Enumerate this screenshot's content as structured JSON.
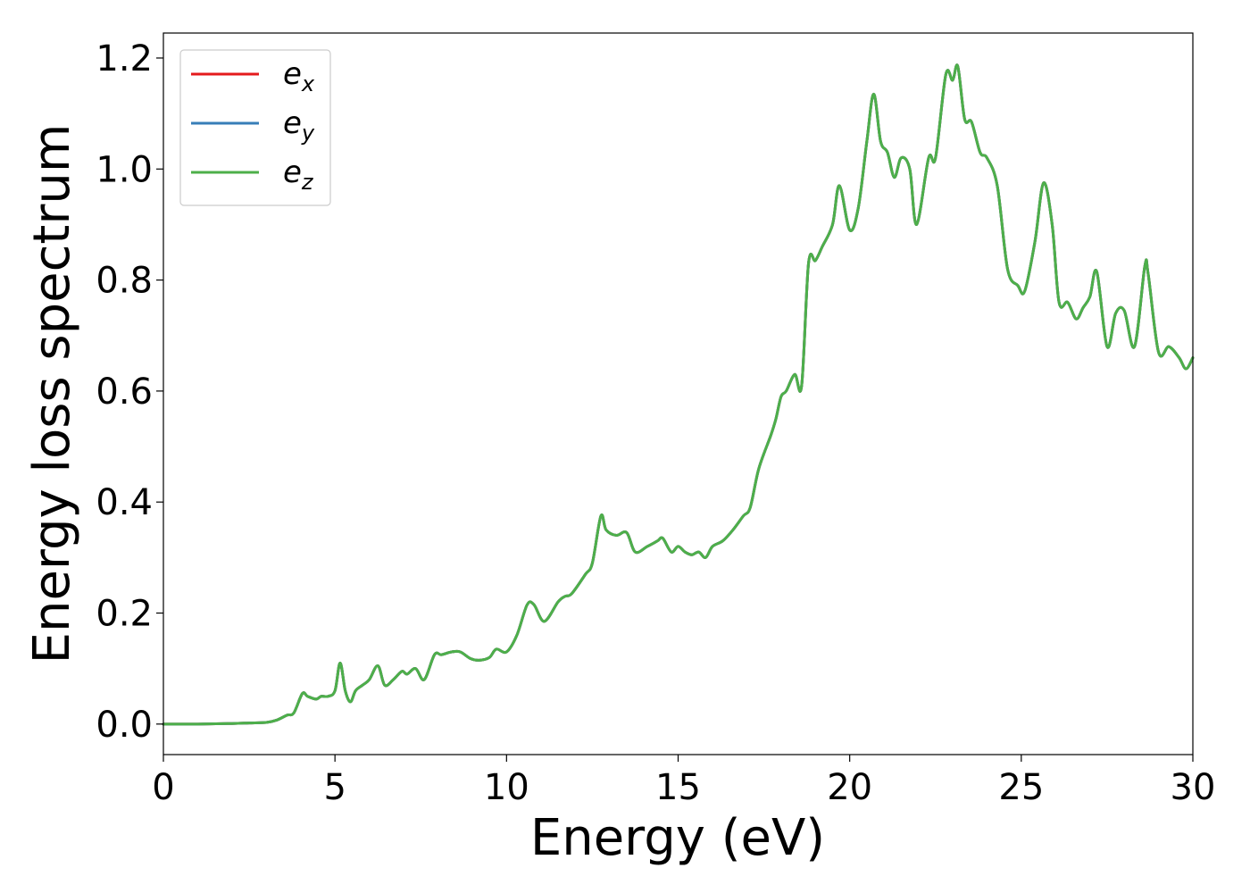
{
  "chart_data": {
    "type": "line",
    "xlabel": "Energy (eV)",
    "ylabel": "Energy loss spectrum",
    "xlim": [
      0,
      30
    ],
    "ylim": [
      -0.055,
      1.245
    ],
    "xticks": [
      "0",
      "5",
      "10",
      "15",
      "20",
      "25",
      "30"
    ],
    "yticks": [
      "0.0",
      "0.2",
      "0.4",
      "0.6",
      "0.8",
      "1.0",
      "1.2"
    ],
    "grid": false,
    "legend_placement": "top-left",
    "legend_entries": [
      {
        "base": "e",
        "sub": "x",
        "color": "#e41a1c"
      },
      {
        "base": "e",
        "sub": "y",
        "color": "#377eb8"
      },
      {
        "base": "e",
        "sub": "z",
        "color": "#4daf4a"
      }
    ],
    "series": [
      {
        "name": "e_x",
        "color": "#e41a1c",
        "x": [
          0,
          1,
          2,
          2.5,
          3,
          3.3,
          3.6,
          3.8,
          4.05,
          4.2,
          4.45,
          4.6,
          4.8,
          5.0,
          5.15,
          5.3,
          5.45,
          5.6,
          5.8,
          6.0,
          6.25,
          6.45,
          6.7,
          6.95,
          7.1,
          7.35,
          7.6,
          7.9,
          8.1,
          8.4,
          8.65,
          8.95,
          9.2,
          9.5,
          9.7,
          10.0,
          10.3,
          10.6,
          10.8,
          11.1,
          11.5,
          11.7,
          11.9,
          12.3,
          12.5,
          12.75,
          12.9,
          13.2,
          13.5,
          13.75,
          14.1,
          14.4,
          14.55,
          14.8,
          15.0,
          15.2,
          15.4,
          15.6,
          15.8,
          16.0,
          16.3,
          16.6,
          16.9,
          17.1,
          17.35,
          17.7,
          17.85,
          18.0,
          18.15,
          18.4,
          18.6,
          18.8,
          19.0,
          19.2,
          19.5,
          19.7,
          20.0,
          20.25,
          20.5,
          20.7,
          20.9,
          21.1,
          21.3,
          21.5,
          21.75,
          21.95,
          22.3,
          22.5,
          22.8,
          23.0,
          23.15,
          23.35,
          23.55,
          23.8,
          24.0,
          24.3,
          24.6,
          24.9,
          25.1,
          25.4,
          25.65,
          25.9,
          26.1,
          26.35,
          26.6,
          26.8,
          27.0,
          27.2,
          27.5,
          27.75,
          28.0,
          28.3,
          28.6,
          28.7,
          29.0,
          29.3,
          29.6,
          29.8,
          30.0
        ],
        "y": [
          0.0,
          0.0,
          0.001,
          0.002,
          0.003,
          0.007,
          0.016,
          0.02,
          0.055,
          0.05,
          0.045,
          0.05,
          0.05,
          0.06,
          0.11,
          0.06,
          0.04,
          0.06,
          0.07,
          0.08,
          0.105,
          0.07,
          0.08,
          0.095,
          0.09,
          0.1,
          0.08,
          0.125,
          0.125,
          0.13,
          0.13,
          0.118,
          0.115,
          0.12,
          0.135,
          0.13,
          0.16,
          0.215,
          0.215,
          0.185,
          0.22,
          0.23,
          0.235,
          0.27,
          0.29,
          0.375,
          0.35,
          0.34,
          0.345,
          0.31,
          0.32,
          0.33,
          0.335,
          0.31,
          0.32,
          0.31,
          0.305,
          0.31,
          0.3,
          0.32,
          0.33,
          0.35,
          0.375,
          0.39,
          0.46,
          0.52,
          0.55,
          0.59,
          0.6,
          0.63,
          0.61,
          0.83,
          0.835,
          0.86,
          0.9,
          0.97,
          0.89,
          0.93,
          1.05,
          1.135,
          1.05,
          1.03,
          0.985,
          1.02,
          1.0,
          0.9,
          1.02,
          1.02,
          1.17,
          1.16,
          1.185,
          1.09,
          1.085,
          1.03,
          1.02,
          0.97,
          0.82,
          0.79,
          0.78,
          0.87,
          0.975,
          0.9,
          0.76,
          0.76,
          0.73,
          0.75,
          0.77,
          0.815,
          0.68,
          0.74,
          0.745,
          0.68,
          0.825,
          0.81,
          0.67,
          0.68,
          0.66,
          0.64,
          0.66
        ]
      },
      {
        "name": "e_y",
        "color": "#377eb8",
        "x": [
          0,
          1,
          2,
          2.5,
          3,
          3.3,
          3.6,
          3.8,
          4.05,
          4.2,
          4.45,
          4.6,
          4.8,
          5.0,
          5.15,
          5.3,
          5.45,
          5.6,
          5.8,
          6.0,
          6.25,
          6.45,
          6.7,
          6.95,
          7.1,
          7.35,
          7.6,
          7.9,
          8.1,
          8.4,
          8.65,
          8.95,
          9.2,
          9.5,
          9.7,
          10.0,
          10.3,
          10.6,
          10.8,
          11.1,
          11.5,
          11.7,
          11.9,
          12.3,
          12.5,
          12.75,
          12.9,
          13.2,
          13.5,
          13.75,
          14.1,
          14.4,
          14.55,
          14.8,
          15.0,
          15.2,
          15.4,
          15.6,
          15.8,
          16.0,
          16.3,
          16.6,
          16.9,
          17.1,
          17.35,
          17.7,
          17.85,
          18.0,
          18.15,
          18.4,
          18.6,
          18.8,
          19.0,
          19.2,
          19.5,
          19.7,
          20.0,
          20.25,
          20.5,
          20.7,
          20.9,
          21.1,
          21.3,
          21.5,
          21.75,
          21.95,
          22.3,
          22.5,
          22.8,
          23.0,
          23.15,
          23.35,
          23.55,
          23.8,
          24.0,
          24.3,
          24.6,
          24.9,
          25.1,
          25.4,
          25.65,
          25.9,
          26.1,
          26.35,
          26.6,
          26.8,
          27.0,
          27.2,
          27.5,
          27.75,
          28.0,
          28.3,
          28.6,
          28.7,
          29.0,
          29.3,
          29.6,
          29.8,
          30.0
        ],
        "y": [
          0.0,
          0.0,
          0.001,
          0.002,
          0.003,
          0.007,
          0.016,
          0.02,
          0.055,
          0.05,
          0.045,
          0.05,
          0.05,
          0.06,
          0.11,
          0.06,
          0.04,
          0.06,
          0.07,
          0.08,
          0.105,
          0.07,
          0.08,
          0.095,
          0.09,
          0.1,
          0.08,
          0.125,
          0.125,
          0.13,
          0.13,
          0.118,
          0.115,
          0.12,
          0.135,
          0.13,
          0.16,
          0.215,
          0.215,
          0.185,
          0.22,
          0.23,
          0.235,
          0.27,
          0.29,
          0.375,
          0.35,
          0.34,
          0.345,
          0.31,
          0.32,
          0.33,
          0.335,
          0.31,
          0.32,
          0.31,
          0.305,
          0.31,
          0.3,
          0.32,
          0.33,
          0.35,
          0.375,
          0.39,
          0.46,
          0.52,
          0.55,
          0.59,
          0.6,
          0.63,
          0.61,
          0.83,
          0.835,
          0.86,
          0.9,
          0.97,
          0.89,
          0.93,
          1.05,
          1.135,
          1.05,
          1.03,
          0.985,
          1.02,
          1.0,
          0.9,
          1.02,
          1.02,
          1.17,
          1.16,
          1.185,
          1.09,
          1.085,
          1.03,
          1.02,
          0.97,
          0.82,
          0.79,
          0.78,
          0.87,
          0.975,
          0.9,
          0.76,
          0.76,
          0.73,
          0.75,
          0.77,
          0.815,
          0.68,
          0.74,
          0.745,
          0.68,
          0.825,
          0.81,
          0.67,
          0.68,
          0.66,
          0.64,
          0.66
        ]
      },
      {
        "name": "e_z",
        "color": "#4daf4a",
        "x": [
          0,
          1,
          2,
          2.5,
          3,
          3.3,
          3.6,
          3.8,
          4.05,
          4.2,
          4.45,
          4.6,
          4.8,
          5.0,
          5.15,
          5.3,
          5.45,
          5.6,
          5.8,
          6.0,
          6.25,
          6.45,
          6.7,
          6.95,
          7.1,
          7.35,
          7.6,
          7.9,
          8.1,
          8.4,
          8.65,
          8.95,
          9.2,
          9.5,
          9.7,
          10.0,
          10.3,
          10.6,
          10.8,
          11.1,
          11.5,
          11.7,
          11.9,
          12.3,
          12.5,
          12.75,
          12.9,
          13.2,
          13.5,
          13.75,
          14.1,
          14.4,
          14.55,
          14.8,
          15.0,
          15.2,
          15.4,
          15.6,
          15.8,
          16.0,
          16.3,
          16.6,
          16.9,
          17.1,
          17.35,
          17.7,
          17.85,
          18.0,
          18.15,
          18.4,
          18.6,
          18.8,
          19.0,
          19.2,
          19.5,
          19.7,
          20.0,
          20.25,
          20.5,
          20.7,
          20.9,
          21.1,
          21.3,
          21.5,
          21.75,
          21.95,
          22.3,
          22.5,
          22.8,
          23.0,
          23.15,
          23.35,
          23.55,
          23.8,
          24.0,
          24.3,
          24.6,
          24.9,
          25.1,
          25.4,
          25.65,
          25.9,
          26.1,
          26.35,
          26.6,
          26.8,
          27.0,
          27.2,
          27.5,
          27.75,
          28.0,
          28.3,
          28.6,
          28.7,
          29.0,
          29.3,
          29.6,
          29.8,
          30.0
        ],
        "y": [
          0.0,
          0.0,
          0.001,
          0.002,
          0.003,
          0.007,
          0.016,
          0.02,
          0.055,
          0.05,
          0.045,
          0.05,
          0.05,
          0.06,
          0.11,
          0.06,
          0.04,
          0.06,
          0.07,
          0.08,
          0.105,
          0.07,
          0.08,
          0.095,
          0.09,
          0.1,
          0.08,
          0.125,
          0.125,
          0.13,
          0.13,
          0.118,
          0.115,
          0.12,
          0.135,
          0.13,
          0.16,
          0.215,
          0.215,
          0.185,
          0.22,
          0.23,
          0.235,
          0.27,
          0.29,
          0.375,
          0.35,
          0.34,
          0.345,
          0.31,
          0.32,
          0.33,
          0.335,
          0.31,
          0.32,
          0.31,
          0.305,
          0.31,
          0.3,
          0.32,
          0.33,
          0.35,
          0.375,
          0.39,
          0.46,
          0.52,
          0.55,
          0.59,
          0.6,
          0.63,
          0.61,
          0.83,
          0.835,
          0.86,
          0.9,
          0.97,
          0.89,
          0.93,
          1.05,
          1.135,
          1.05,
          1.03,
          0.985,
          1.02,
          1.0,
          0.9,
          1.02,
          1.02,
          1.17,
          1.16,
          1.185,
          1.09,
          1.085,
          1.03,
          1.02,
          0.97,
          0.82,
          0.79,
          0.78,
          0.87,
          0.975,
          0.9,
          0.76,
          0.76,
          0.73,
          0.75,
          0.77,
          0.815,
          0.68,
          0.74,
          0.745,
          0.68,
          0.825,
          0.81,
          0.67,
          0.68,
          0.66,
          0.64,
          0.66
        ]
      }
    ]
  }
}
